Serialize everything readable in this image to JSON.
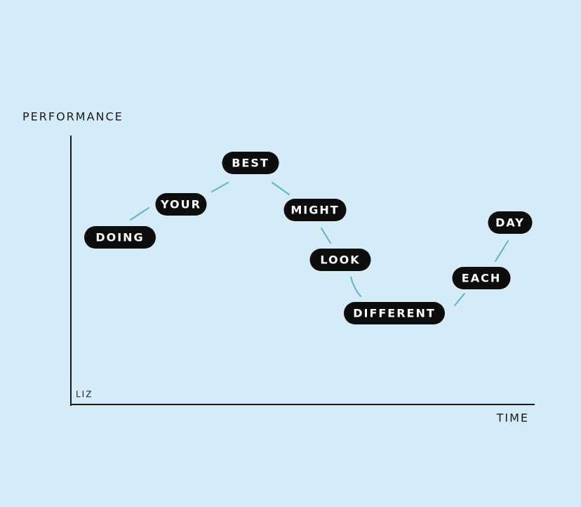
{
  "y_axis_label": "PERFORMANCE",
  "x_axis_label": "TIME",
  "signature": "LIZ",
  "words": [
    "DOING",
    "YOUR",
    "BEST",
    "MIGHT",
    "LOOK",
    "DIFFERENT",
    "EACH",
    "DAY"
  ]
}
